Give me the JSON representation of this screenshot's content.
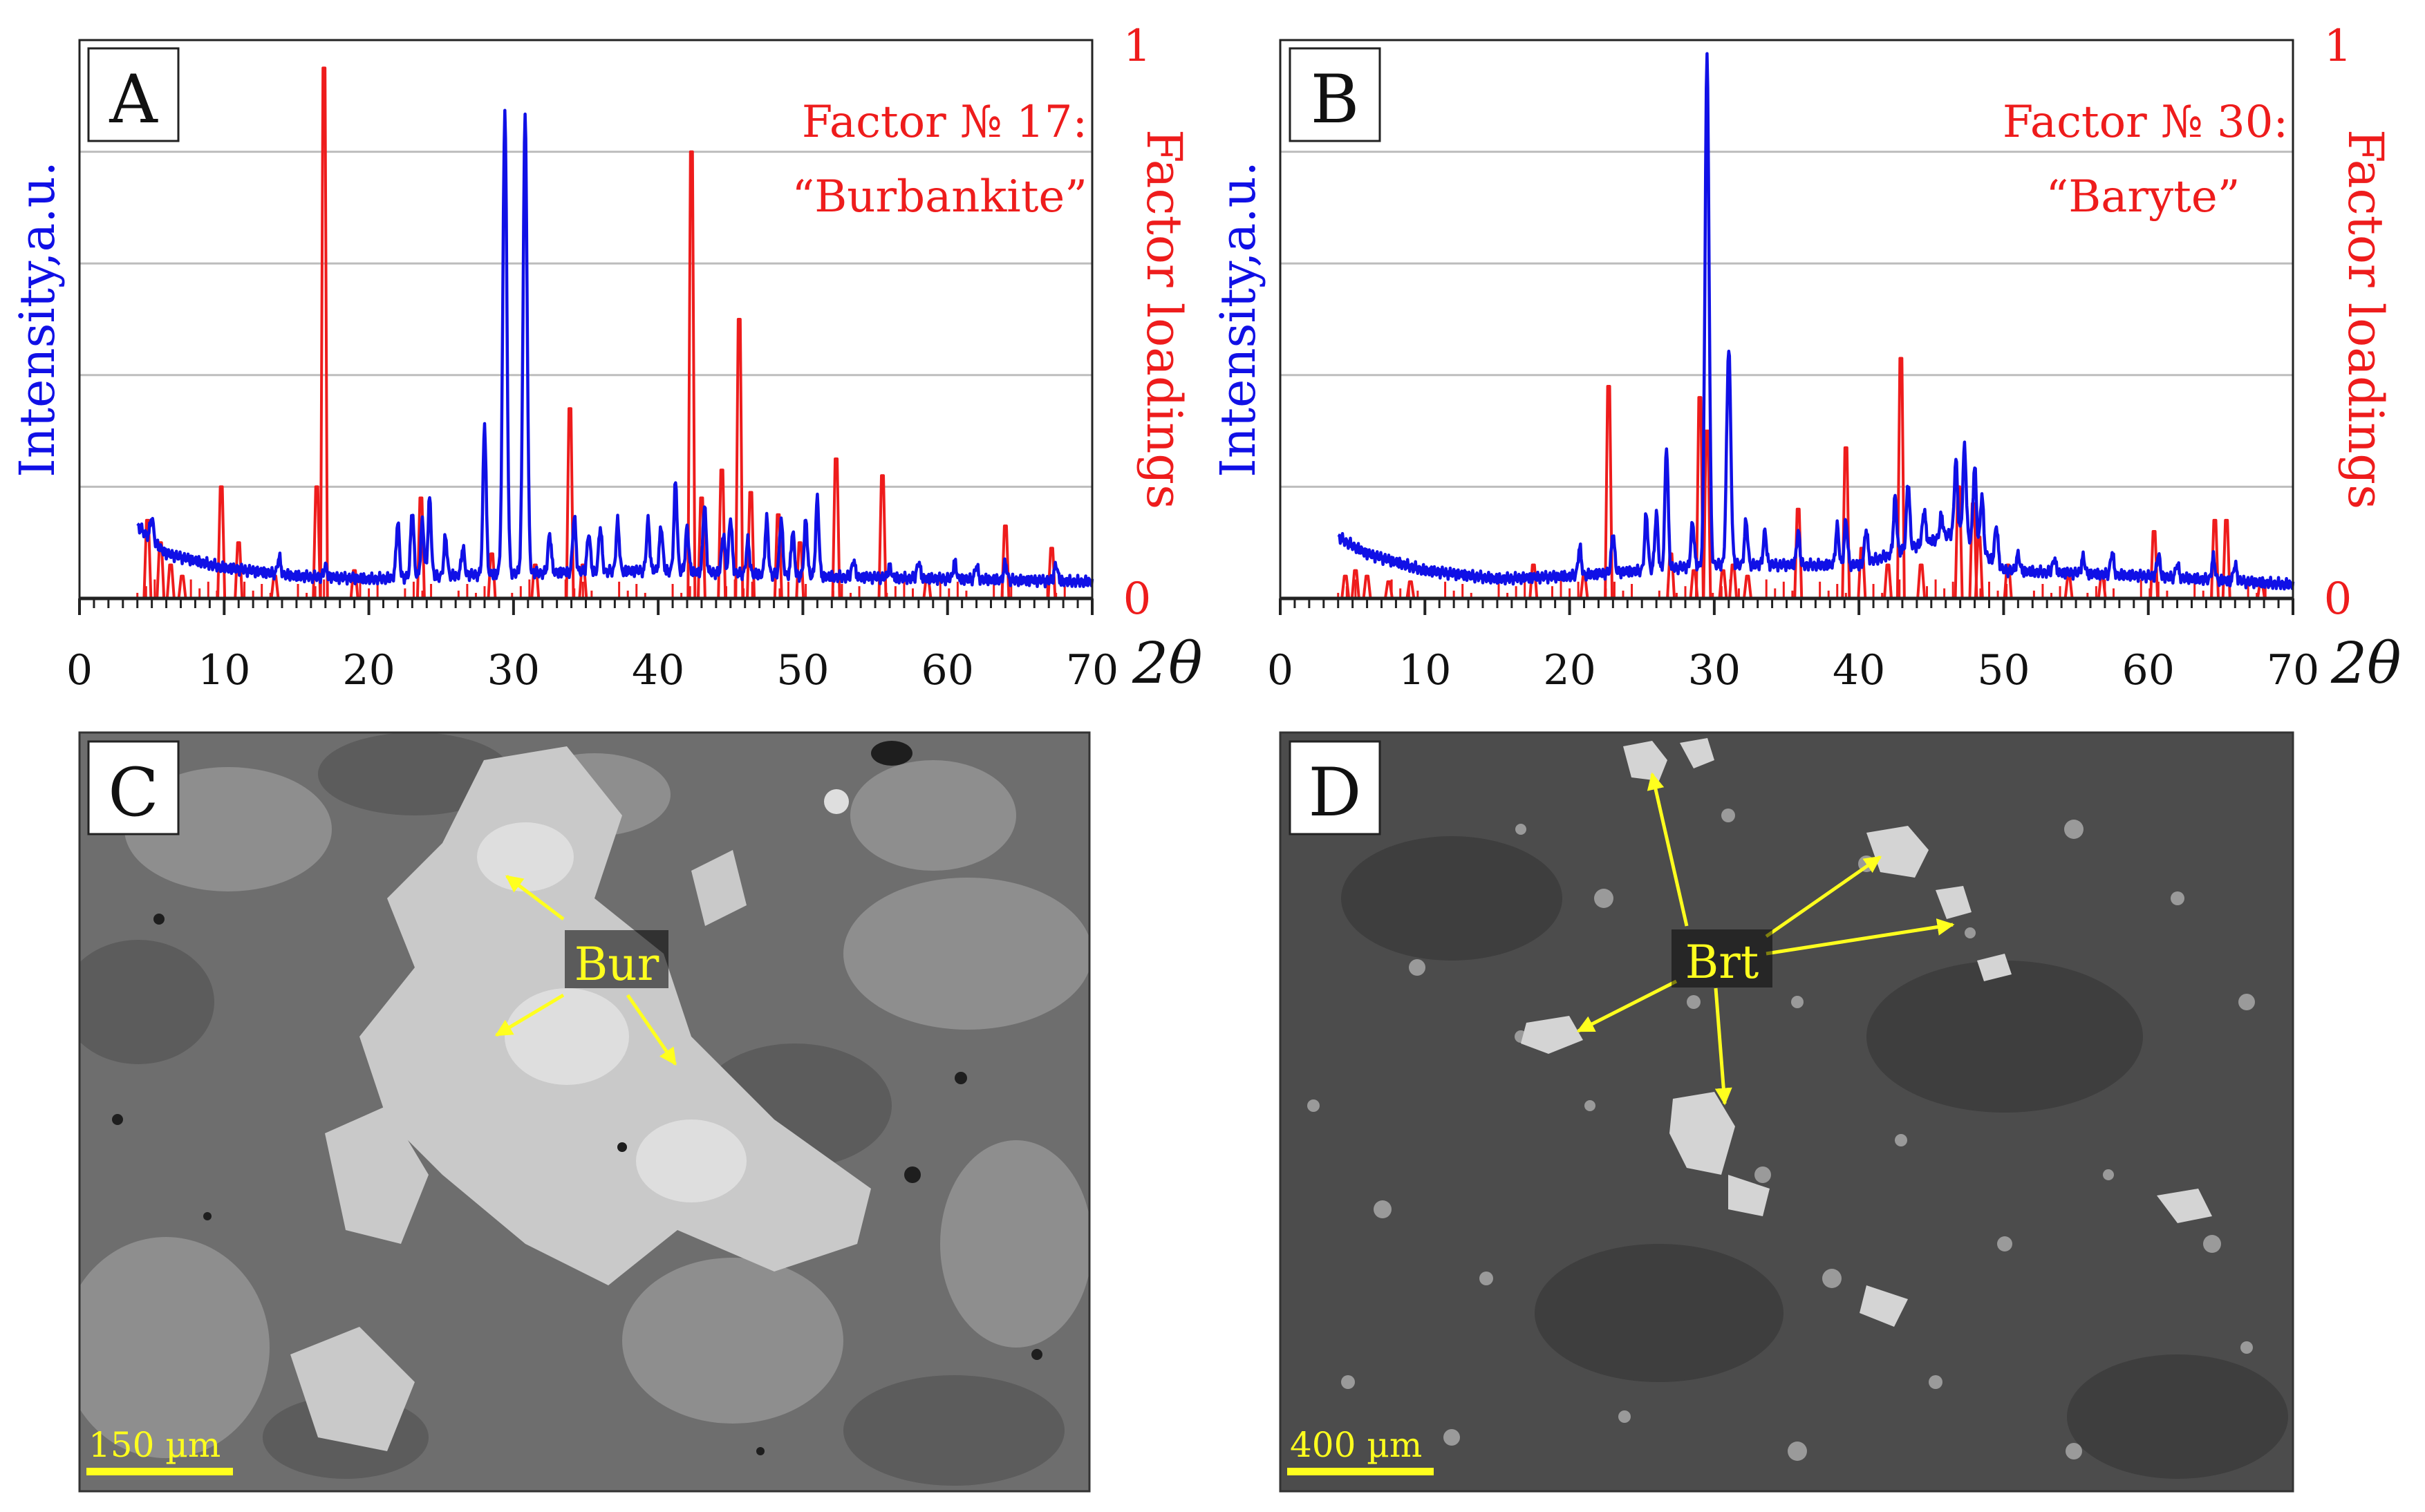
{
  "figure": {
    "colors": {
      "intensity": "#1010e6",
      "factor": "#ee1c1c",
      "grid": "#bdbdbd",
      "arrow": "#ffff1e",
      "scalebar": "#ffff1e"
    }
  },
  "chart_data": [
    {
      "type": "line",
      "panel_label": "A",
      "title": "Factor № 17:",
      "subtitle": "“Burbankite”",
      "xlabel": "2θ",
      "ylabel_left": "Intensity,a.u.",
      "ylabel_right": "Factor loadings",
      "xlim": [
        0,
        70
      ],
      "ylim_right": [
        0,
        1
      ],
      "x_ticks": [
        0,
        10,
        20,
        30,
        40,
        50,
        60,
        70
      ],
      "x_ticklabels": [
        "0",
        "10",
        "20",
        "30",
        "40",
        "50",
        "60",
        "70"
      ],
      "y_right_ticks": [
        0,
        1
      ],
      "y_right_ticklabels": [
        "0",
        "1"
      ],
      "grid": true,
      "series": [
        {
          "name": "Intensity",
          "color": "#1010e6",
          "style": "line",
          "baseline": [
            [
              4,
              0.13
            ],
            [
              6,
              0.08
            ],
            [
              10,
              0.055
            ],
            [
              15,
              0.04
            ],
            [
              20,
              0.035
            ],
            [
              30,
              0.045
            ],
            [
              40,
              0.05
            ],
            [
              50,
              0.04
            ],
            [
              60,
              0.035
            ],
            [
              70,
              0.03
            ]
          ],
          "peaks": [
            [
              5,
              0.04
            ],
            [
              13.8,
              0.03
            ],
            [
              17,
              0.02
            ],
            [
              22,
              0.1
            ],
            [
              23,
              0.12
            ],
            [
              23.7,
              0.1
            ],
            [
              24.2,
              0.14
            ],
            [
              25.3,
              0.07
            ],
            [
              26.5,
              0.05
            ],
            [
              28,
              0.27
            ],
            [
              29.4,
              0.83
            ],
            [
              30.8,
              0.82
            ],
            [
              32.5,
              0.07
            ],
            [
              34.2,
              0.1
            ],
            [
              35.2,
              0.07
            ],
            [
              36,
              0.08
            ],
            [
              37.2,
              0.09
            ],
            [
              39.3,
              0.09
            ],
            [
              40.2,
              0.08
            ],
            [
              41.2,
              0.16
            ],
            [
              42,
              0.08
            ],
            [
              43.2,
              0.12
            ],
            [
              44.5,
              0.07
            ],
            [
              45,
              0.1
            ],
            [
              46.2,
              0.06
            ],
            [
              47.5,
              0.1
            ],
            [
              48.5,
              0.1
            ],
            [
              49.3,
              0.08
            ],
            [
              50.2,
              0.1
            ],
            [
              51,
              0.14
            ],
            [
              53.5,
              0.03
            ],
            [
              56,
              0.02
            ],
            [
              58,
              0.03
            ],
            [
              60.5,
              0.03
            ],
            [
              62,
              0.025
            ],
            [
              64,
              0.03
            ],
            [
              67.5,
              0.03
            ]
          ]
        },
        {
          "name": "Factor loadings",
          "color": "#ee1c1c",
          "style": "sticks",
          "sticks": [
            [
              4.7,
              0.14
            ],
            [
              5.6,
              0.1
            ],
            [
              6.3,
              0.06
            ],
            [
              7.1,
              0.04
            ],
            [
              9.8,
              0.2
            ],
            [
              11,
              0.1
            ],
            [
              13.5,
              0.04
            ],
            [
              16.4,
              0.2
            ],
            [
              16.9,
              0.95
            ],
            [
              19,
              0.05
            ],
            [
              23.6,
              0.18
            ],
            [
              28.5,
              0.08
            ],
            [
              31.5,
              0.06
            ],
            [
              33.9,
              0.34
            ],
            [
              34.8,
              0.06
            ],
            [
              42.3,
              0.8
            ],
            [
              43,
              0.18
            ],
            [
              44.4,
              0.23
            ],
            [
              45.6,
              0.5
            ],
            [
              46.4,
              0.19
            ],
            [
              48.3,
              0.15
            ],
            [
              49.8,
              0.1
            ],
            [
              52.3,
              0.25
            ],
            [
              55.5,
              0.22
            ],
            [
              58.6,
              0.04
            ],
            [
              64,
              0.13
            ],
            [
              67.2,
              0.09
            ]
          ]
        }
      ]
    },
    {
      "type": "line",
      "panel_label": "B",
      "title": "Factor № 30:",
      "subtitle": "“Baryte”",
      "xlabel": "2θ",
      "ylabel_left": "Intensity,a.u.",
      "ylabel_right": "Factor loadings",
      "xlim": [
        0,
        70
      ],
      "ylim_right": [
        0,
        1
      ],
      "x_ticks": [
        0,
        10,
        20,
        30,
        40,
        50,
        60,
        70
      ],
      "x_ticklabels": [
        "0",
        "10",
        "20",
        "30",
        "40",
        "50",
        "60",
        "70"
      ],
      "y_right_ticks": [
        0,
        1
      ],
      "y_right_ticklabels": [
        "0",
        "1"
      ],
      "grid": true,
      "series": [
        {
          "name": "Intensity",
          "color": "#1010e6",
          "style": "line",
          "baseline": [
            [
              4,
              0.11
            ],
            [
              6,
              0.08
            ],
            [
              10,
              0.05
            ],
            [
              15,
              0.035
            ],
            [
              20,
              0.04
            ],
            [
              30,
              0.06
            ],
            [
              40,
              0.06
            ],
            [
              47,
              0.12
            ],
            [
              50,
              0.05
            ],
            [
              60,
              0.04
            ],
            [
              70,
              0.025
            ]
          ],
          "peaks": [
            [
              20.7,
              0.05
            ],
            [
              23,
              0.07
            ],
            [
              25.3,
              0.1
            ],
            [
              26,
              0.1
            ],
            [
              26.7,
              0.22
            ],
            [
              28.5,
              0.08
            ],
            [
              29.5,
              0.91
            ],
            [
              31,
              0.39
            ],
            [
              32.2,
              0.08
            ],
            [
              33.5,
              0.06
            ],
            [
              35.8,
              0.06
            ],
            [
              38.5,
              0.07
            ],
            [
              39.1,
              0.08
            ],
            [
              40.5,
              0.06
            ],
            [
              42.5,
              0.1
            ],
            [
              43.4,
              0.12
            ],
            [
              44.5,
              0.06
            ],
            [
              45.7,
              0.04
            ],
            [
              46.7,
              0.13
            ],
            [
              47.3,
              0.16
            ],
            [
              48,
              0.14
            ],
            [
              48.5,
              0.1
            ],
            [
              49.5,
              0.07
            ],
            [
              51,
              0.03
            ],
            [
              53.5,
              0.025
            ],
            [
              55.5,
              0.03
            ],
            [
              57.5,
              0.04
            ],
            [
              60.7,
              0.04
            ],
            [
              62,
              0.025
            ],
            [
              64.5,
              0.04
            ],
            [
              66,
              0.03
            ]
          ]
        },
        {
          "name": "Factor loadings",
          "color": "#ee1c1c",
          "style": "sticks",
          "sticks": [
            [
              4.5,
              0.04
            ],
            [
              5.2,
              0.05
            ],
            [
              6,
              0.04
            ],
            [
              7.5,
              0.03
            ],
            [
              9,
              0.03
            ],
            [
              17.5,
              0.06
            ],
            [
              21,
              0.04
            ],
            [
              22.7,
              0.38
            ],
            [
              27,
              0.08
            ],
            [
              28.6,
              0.05
            ],
            [
              29,
              0.36
            ],
            [
              29.5,
              0.3
            ],
            [
              30.6,
              0.05
            ],
            [
              31.3,
              0.06
            ],
            [
              32.3,
              0.04
            ],
            [
              35.8,
              0.16
            ],
            [
              39.1,
              0.27
            ],
            [
              40.2,
              0.09
            ],
            [
              42,
              0.06
            ],
            [
              42.9,
              0.43
            ],
            [
              44.3,
              0.06
            ],
            [
              46.9,
              0.2
            ],
            [
              47.9,
              0.17
            ],
            [
              48.3,
              0.11
            ],
            [
              50.3,
              0.06
            ],
            [
              54.5,
              0.04
            ],
            [
              56.8,
              0.04
            ],
            [
              60.4,
              0.12
            ],
            [
              64.6,
              0.14
            ],
            [
              65.4,
              0.14
            ],
            [
              67.8,
              0.03
            ]
          ]
        }
      ]
    }
  ],
  "images": [
    {
      "panel_label": "C",
      "annotation": "Bur",
      "scale_bar": "150 µm"
    },
    {
      "panel_label": "D",
      "annotation": "Brt",
      "scale_bar": "400 µm"
    }
  ]
}
